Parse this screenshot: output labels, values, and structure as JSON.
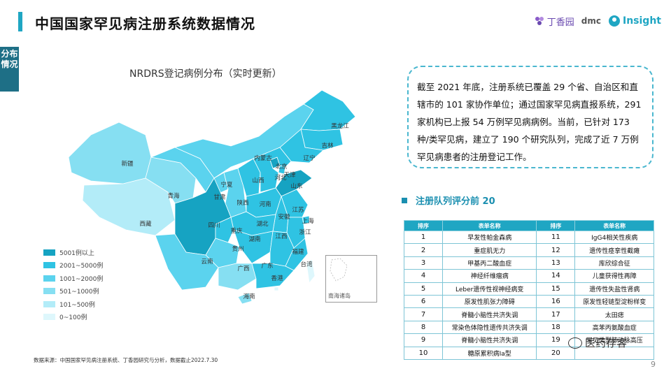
{
  "title": "中国国家罕见病注册系统数据情况",
  "side_tag": "分布情况",
  "logos": {
    "dxy": "丁香园",
    "dmc": "dmc",
    "insight": "Insight"
  },
  "map": {
    "title": "NRDRS登记病例分布（实时更新）",
    "nanhai_label": "南海诸岛"
  },
  "legend": {
    "items": [
      {
        "label": "5001例以上",
        "color": "#16a3c2"
      },
      {
        "label": "2001~5000例",
        "color": "#2fc3e3"
      },
      {
        "label": "1001~2000例",
        "color": "#5bd3ee"
      },
      {
        "label": "501~1000例",
        "color": "#86dff2"
      },
      {
        "label": "101~500例",
        "color": "#b3ecf8"
      },
      {
        "label": "0~100例",
        "color": "#def7fc"
      }
    ]
  },
  "chart_data": {
    "type": "choropleth",
    "title": "NRDRS登记病例分布（实时更新）",
    "bins": [
      "0~100例",
      "101~500例",
      "501~1000例",
      "1001~2000例",
      "2001~5000例",
      "5001例以上"
    ],
    "regions": [
      {
        "name": "黑龙江",
        "bin": "2001~5000例"
      },
      {
        "name": "吉林",
        "bin": "2001~5000例"
      },
      {
        "name": "辽宁",
        "bin": "2001~5000例"
      },
      {
        "name": "内蒙古",
        "bin": "1001~2000例"
      },
      {
        "name": "新疆",
        "bin": "501~1000例"
      },
      {
        "name": "西藏",
        "bin": "101~500例"
      },
      {
        "name": "青海",
        "bin": "501~1000例"
      },
      {
        "name": "甘肃",
        "bin": "1001~2000例"
      },
      {
        "name": "宁夏",
        "bin": "1001~2000例"
      },
      {
        "name": "陕西",
        "bin": "1001~2000例"
      },
      {
        "name": "山西",
        "bin": "2001~5000例"
      },
      {
        "name": "北京",
        "bin": "5001例以上"
      },
      {
        "name": "天津",
        "bin": "2001~5000例"
      },
      {
        "name": "河北",
        "bin": "2001~5000例"
      },
      {
        "name": "山东",
        "bin": "5001例以上"
      },
      {
        "name": "河南",
        "bin": "2001~5000例"
      },
      {
        "name": "江苏",
        "bin": "2001~5000例"
      },
      {
        "name": "安徽",
        "bin": "2001~5000例"
      },
      {
        "name": "上海",
        "bin": "2001~5000例"
      },
      {
        "name": "浙江",
        "bin": "2001~5000例"
      },
      {
        "name": "湖北",
        "bin": "2001~5000例"
      },
      {
        "name": "四川",
        "bin": "5001例以上"
      },
      {
        "name": "重庆",
        "bin": "2001~5000例"
      },
      {
        "name": "贵州",
        "bin": "1001~2000例"
      },
      {
        "name": "湖南",
        "bin": "2001~5000例"
      },
      {
        "name": "江西",
        "bin": "2001~5000例"
      },
      {
        "name": "福建",
        "bin": "2001~5000例"
      },
      {
        "name": "云南",
        "bin": "1001~2000例"
      },
      {
        "name": "广西",
        "bin": "501~1000例"
      },
      {
        "name": "广东",
        "bin": "2001~5000例"
      },
      {
        "name": "香港",
        "bin": "0~100例"
      },
      {
        "name": "台湾",
        "bin": "0~100例"
      },
      {
        "name": "海南",
        "bin": "501~1000例"
      }
    ]
  },
  "callout": "截至 2021 年底，注册系统已覆盖 29 个省、自治区和直辖市的 101 家协作单位；通过国家罕见病直报系统，291 家机构已上报 54 万例罕见病病例。当前，已针对 173 种/类罕见病，建立了 190 个研究队列，完成了近 7 万例罕见病患者的注册登记工作。",
  "section_title": "注册队列评分前 20",
  "table": {
    "headers": [
      "排序",
      "表单名称",
      "排序",
      "表单名称"
    ],
    "rows": [
      [
        "1",
        "早发性帕金森病",
        "11",
        "IgG4相关性疾病"
      ],
      [
        "2",
        "重症肌无力",
        "12",
        "遗传性痉挛性截瘫"
      ],
      [
        "3",
        "甲基丙二酸血症",
        "13",
        "库欣综合征"
      ],
      [
        "4",
        "神经纤维瘤病",
        "14",
        "儿童获得性再障"
      ],
      [
        "5",
        "Leber遗传性视神经病变",
        "15",
        "遗传性失盐性肾病"
      ],
      [
        "6",
        "原发性肌张力障碍",
        "16",
        "原发性轻链型淀粉样变"
      ],
      [
        "7",
        "脊髓小脑性共济失调",
        "17",
        "太田痣"
      ],
      [
        "8",
        "常染色体隐性遗传共济失调",
        "18",
        "高苯丙氨酸血症"
      ],
      [
        "9",
        "脊髓小脑性共济失调",
        "19",
        "罕见类型肺动脉高压"
      ],
      [
        "10",
        "糖原累积病Ia型",
        "20",
        ""
      ]
    ]
  },
  "source": "数据来源：中国国家罕见病注册系统、丁香园研究与分析，数据截止2022.7.30",
  "page_number": "9",
  "watermark": "医药存客"
}
